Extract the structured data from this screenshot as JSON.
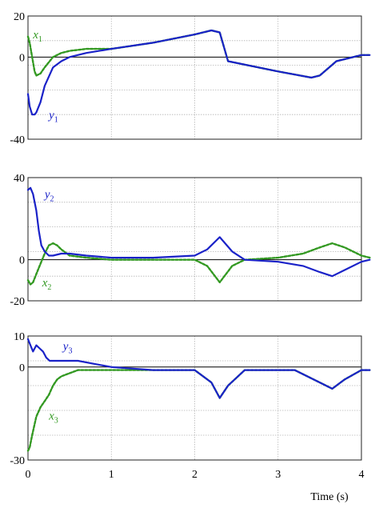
{
  "chart_data": [
    {
      "type": "line",
      "ylim": [
        -40,
        20
      ],
      "xlim": [
        0,
        4
      ],
      "grid": true,
      "y_ticks": [
        -40,
        0,
        20
      ],
      "y_tick_labels": [
        "-40",
        "0",
        "20"
      ],
      "series": [
        {
          "name": "x",
          "subscript": "1",
          "style": "dashed",
          "color": "#339922",
          "x": [
            0.0,
            0.02,
            0.05,
            0.08,
            0.1,
            0.15,
            0.2,
            0.3,
            0.4,
            0.5,
            0.7,
            1.0,
            1.5,
            2.0,
            2.2,
            2.3,
            2.4,
            3.0,
            3.4,
            3.5,
            3.7,
            4.0,
            4.1
          ],
          "y": [
            10,
            7,
            0,
            -7,
            -9,
            -8,
            -5,
            0,
            2,
            3,
            4,
            4,
            7,
            11,
            13,
            12,
            -2,
            -7,
            -10,
            -9,
            -2,
            1,
            1
          ]
        },
        {
          "name": "y",
          "subscript": "1",
          "style": "solid",
          "color": "#1a22c8",
          "x": [
            0.0,
            0.02,
            0.05,
            0.08,
            0.1,
            0.15,
            0.2,
            0.3,
            0.4,
            0.5,
            0.7,
            1.0,
            1.5,
            2.0,
            2.2,
            2.3,
            2.4,
            3.0,
            3.4,
            3.5,
            3.7,
            4.0,
            4.1
          ],
          "y": [
            -18,
            -24,
            -28,
            -28,
            -27,
            -22,
            -14,
            -5,
            -2,
            0,
            2,
            4,
            7,
            11,
            13,
            12,
            -2,
            -7,
            -10,
            -9,
            -2,
            1,
            1
          ]
        }
      ],
      "series_labels": [
        {
          "name": "x",
          "subscript": "1",
          "x": 0.06,
          "y": 9,
          "color": "#339922"
        },
        {
          "name": "y",
          "subscript": "1",
          "x": 0.25,
          "y": -30,
          "color": "#1a22c8"
        }
      ]
    },
    {
      "type": "line",
      "ylim": [
        -20,
        40
      ],
      "xlim": [
        0,
        4
      ],
      "grid": true,
      "y_ticks": [
        -20,
        0,
        40
      ],
      "y_tick_labels": [
        "-20",
        "0",
        "40"
      ],
      "series": [
        {
          "name": "x",
          "subscript": "2",
          "style": "dashed",
          "color": "#339922",
          "x": [
            0.0,
            0.03,
            0.06,
            0.1,
            0.15,
            0.2,
            0.25,
            0.3,
            0.35,
            0.4,
            0.5,
            0.7,
            1.0,
            1.5,
            2.0,
            2.15,
            2.3,
            2.45,
            2.6,
            3.0,
            3.3,
            3.5,
            3.65,
            3.8,
            4.0,
            4.1
          ],
          "y": [
            -10,
            -12,
            -11,
            -7,
            -2,
            3,
            7,
            8,
            7,
            5,
            2,
            1,
            0,
            0,
            0,
            -3,
            -11,
            -3,
            0,
            1,
            3,
            6,
            8,
            6,
            2,
            1
          ]
        },
        {
          "name": "y",
          "subscript": "2",
          "style": "solid",
          "color": "#1a22c8",
          "x": [
            0.0,
            0.03,
            0.06,
            0.1,
            0.13,
            0.16,
            0.2,
            0.25,
            0.3,
            0.4,
            0.5,
            0.7,
            1.0,
            1.5,
            2.0,
            2.15,
            2.3,
            2.45,
            2.6,
            3.0,
            3.3,
            3.5,
            3.65,
            3.8,
            4.0,
            4.1
          ],
          "y": [
            34,
            35,
            32,
            24,
            14,
            7,
            4,
            2,
            2,
            3,
            3,
            2,
            1,
            1,
            2,
            5,
            11,
            4,
            0,
            -1,
            -3,
            -6,
            -8,
            -5,
            -1,
            0
          ]
        }
      ],
      "series_labels": [
        {
          "name": "y",
          "subscript": "2",
          "x": 0.2,
          "y": 30,
          "color": "#1a22c8"
        },
        {
          "name": "x",
          "subscript": "2",
          "x": 0.17,
          "y": -13,
          "color": "#339922"
        }
      ]
    },
    {
      "type": "line",
      "ylim": [
        -30,
        10
      ],
      "xlim": [
        0,
        4
      ],
      "grid": true,
      "y_ticks": [
        -30,
        0,
        10
      ],
      "y_tick_labels": [
        "-30",
        "0",
        "10"
      ],
      "series": [
        {
          "name": "x",
          "subscript": "3",
          "style": "dashed",
          "color": "#339922",
          "x": [
            0.0,
            0.02,
            0.05,
            0.1,
            0.15,
            0.2,
            0.25,
            0.3,
            0.35,
            0.4,
            0.5,
            0.6,
            0.8,
            1.0,
            1.5,
            2.0,
            2.2,
            2.3,
            2.4,
            2.6,
            3.0,
            3.2,
            3.5,
            3.65,
            3.8,
            4.0,
            4.1
          ],
          "y": [
            -27,
            -26,
            -22,
            -16,
            -13,
            -11,
            -9,
            -6,
            -4,
            -3,
            -2,
            -1,
            -1,
            -1,
            -1,
            -1,
            -5,
            -10,
            -6,
            -1,
            -1,
            -1,
            -5,
            -7,
            -4,
            -1,
            -1
          ]
        },
        {
          "name": "y",
          "subscript": "3",
          "style": "solid",
          "color": "#1a22c8",
          "x": [
            0.0,
            0.03,
            0.06,
            0.1,
            0.14,
            0.18,
            0.22,
            0.26,
            0.3,
            0.4,
            0.5,
            0.6,
            0.8,
            1.0,
            1.5,
            2.0,
            2.2,
            2.3,
            2.4,
            2.6,
            3.0,
            3.2,
            3.5,
            3.65,
            3.8,
            4.0,
            4.1
          ],
          "y": [
            9,
            7,
            5,
            7,
            6,
            5,
            3,
            2,
            2,
            2,
            2,
            2,
            1,
            0,
            -1,
            -1,
            -5,
            -10,
            -6,
            -1,
            -1,
            -1,
            -5,
            -7,
            -4,
            -1,
            -1
          ]
        }
      ],
      "series_labels": [
        {
          "name": "y",
          "subscript": "3",
          "x": 0.42,
          "y": 5.5,
          "color": "#1a22c8"
        },
        {
          "name": "x",
          "subscript": "3",
          "x": 0.25,
          "y": -17,
          "color": "#339922"
        }
      ],
      "x_ticks": [
        0,
        1,
        2,
        3,
        4
      ],
      "x_tick_labels": [
        "0",
        "1",
        "2",
        "3",
        "4"
      ],
      "xlabel": "Time (s)"
    }
  ]
}
